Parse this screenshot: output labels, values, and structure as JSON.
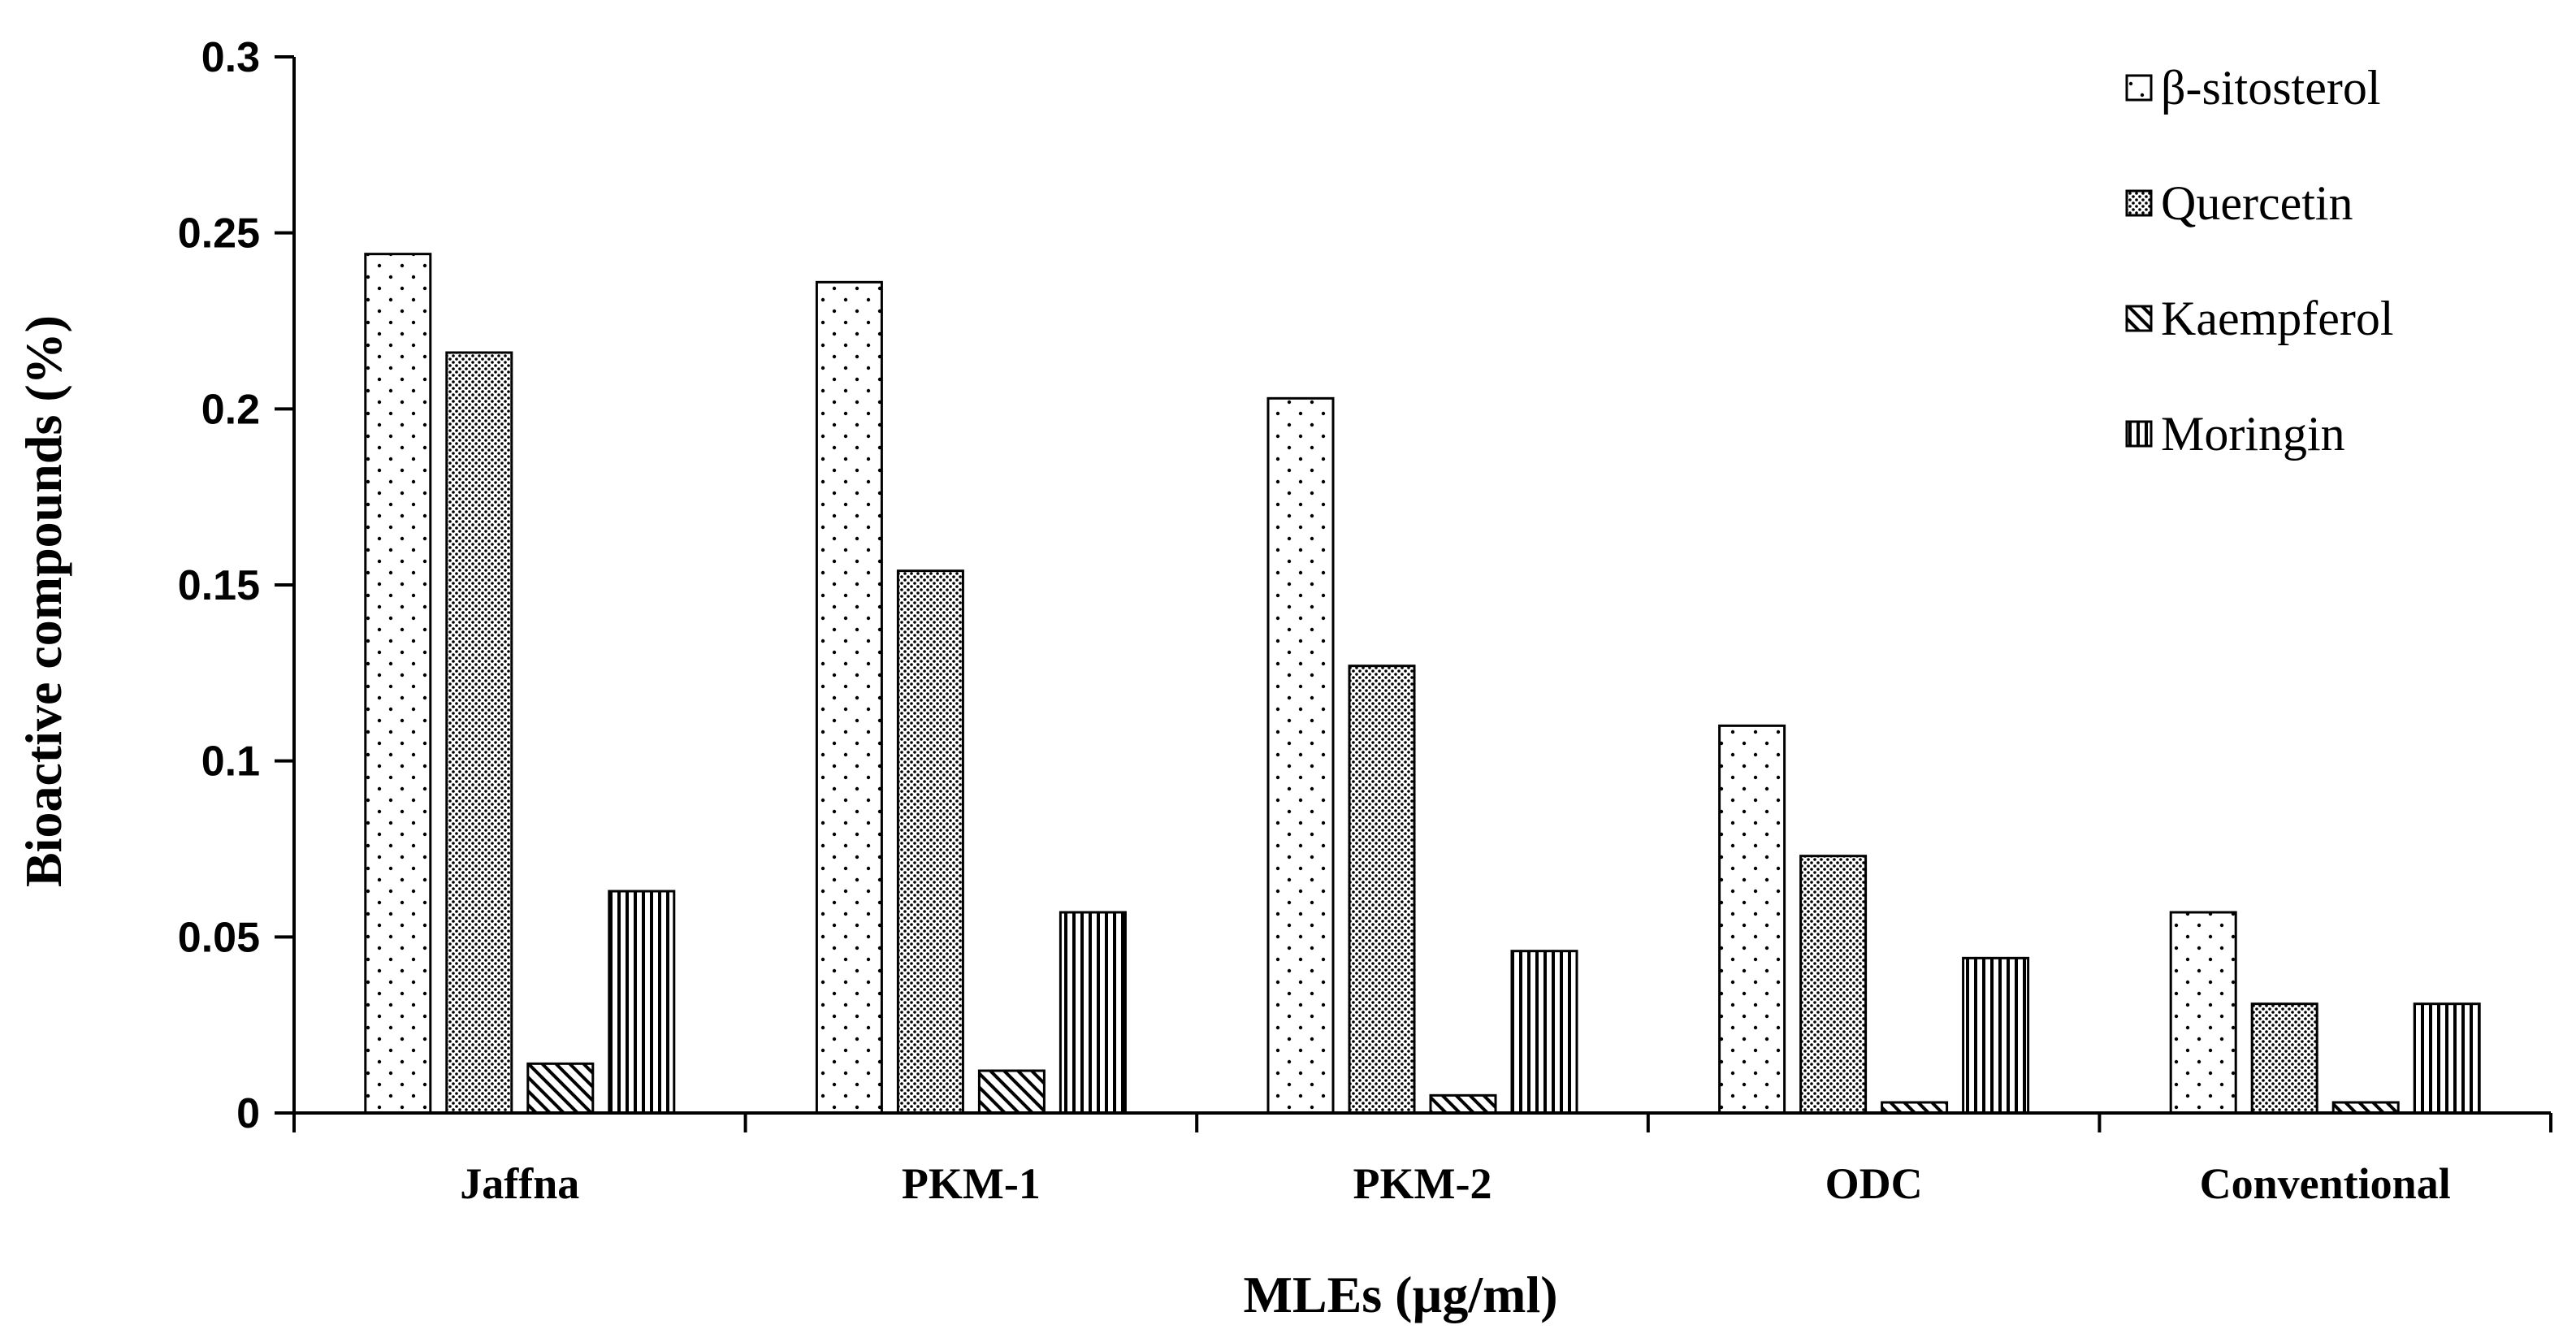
{
  "chart_data": {
    "type": "bar",
    "title": "",
    "xlabel": "MLEs (µg/ml)",
    "ylabel": "Bioactive compounds (%)",
    "categories": [
      "Jaffna",
      "PKM-1",
      "PKM-2",
      "ODC",
      "Conventional"
    ],
    "ylim": [
      0,
      0.3
    ],
    "yticks": [
      0,
      0.05,
      0.1,
      0.15,
      0.2,
      0.25,
      0.3
    ],
    "ytick_labels": [
      "0",
      "0.05",
      "0.1",
      "0.15",
      "0.2",
      "0.25",
      "0.3"
    ],
    "grid": false,
    "legend_position": "top-right",
    "series": [
      {
        "name": "β-sitosterol",
        "pattern": "dots",
        "values": [
          0.244,
          0.236,
          0.203,
          0.11,
          0.057
        ]
      },
      {
        "name": "Quercetin",
        "pattern": "dense-dots",
        "values": [
          0.216,
          0.154,
          0.127,
          0.073,
          0.031
        ]
      },
      {
        "name": "Kaempferol",
        "pattern": "diagonal",
        "values": [
          0.014,
          0.012,
          0.005,
          0.003,
          0.003
        ]
      },
      {
        "name": "Moringin",
        "pattern": "vertical",
        "values": [
          0.063,
          0.057,
          0.046,
          0.044,
          0.031
        ]
      }
    ]
  },
  "colors": {
    "axis": "#000000",
    "bar_stroke": "#000000",
    "background": "#ffffff"
  }
}
